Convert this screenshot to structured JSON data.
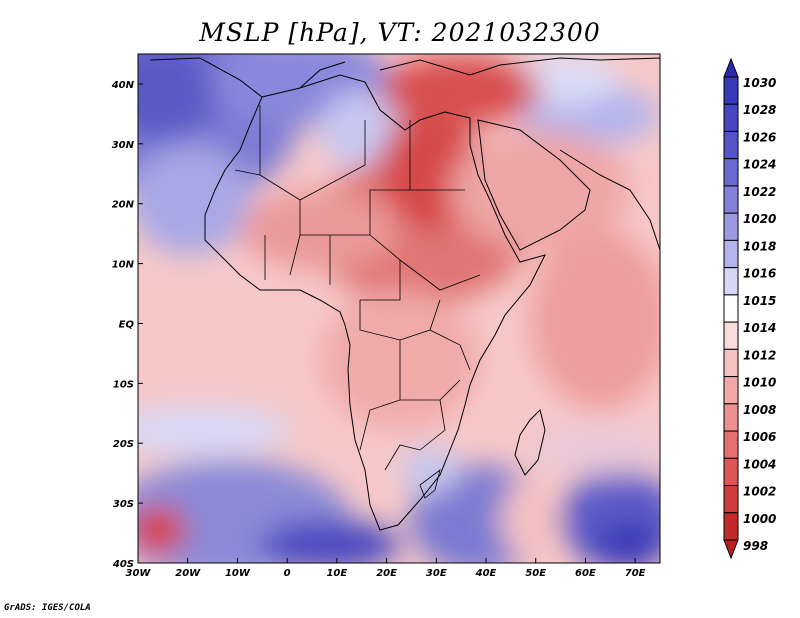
{
  "title": "MSLP [hPa], VT: 2021032300",
  "credit": "GrADS: IGES/COLA",
  "chart_data": {
    "type": "heatmap",
    "variable": "MSLP",
    "units": "hPa",
    "valid_time": "2021032300",
    "lon_range": [
      -30,
      75
    ],
    "lat_range": [
      -40,
      45
    ],
    "x_ticks": [
      "30W",
      "20W",
      "10W",
      "0",
      "10E",
      "20E",
      "30E",
      "40E",
      "50E",
      "60E",
      "70E"
    ],
    "x_tick_values": [
      -30,
      -20,
      -10,
      0,
      10,
      20,
      30,
      40,
      50,
      60,
      70
    ],
    "y_ticks": [
      "40N",
      "30N",
      "20N",
      "10N",
      "EQ",
      "10S",
      "20S",
      "30S",
      "40S"
    ],
    "y_tick_values": [
      40,
      30,
      20,
      10,
      0,
      -10,
      -20,
      -30,
      -40
    ],
    "colorbar_levels": [
      "1030",
      "1028",
      "1026",
      "1024",
      "1022",
      "1020",
      "1018",
      "1016",
      "1015",
      "1014",
      "1012",
      "1010",
      "1008",
      "1006",
      "1004",
      "1002",
      "1000",
      "998"
    ],
    "colorbar_colors": [
      "#2b2bb0",
      "#3a3ab8",
      "#4646c0",
      "#5555c8",
      "#6a6ad0",
      "#8282da",
      "#9a9ae2",
      "#b4b4ec",
      "#d6d6f6",
      "#ffffff",
      "#fbdada",
      "#f7c2c2",
      "#f1a8a8",
      "#ec9090",
      "#e47070",
      "#dc5656",
      "#d23e3e",
      "#c42a2a",
      "#b51f1f"
    ]
  }
}
